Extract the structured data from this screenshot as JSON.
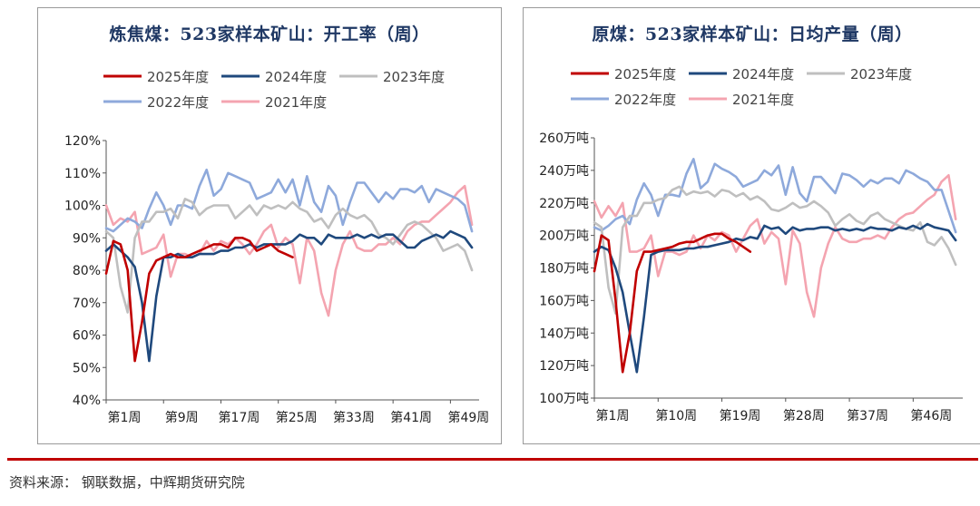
{
  "charts_title_left": "炼焦煤：523家样本矿山：开工率（周）",
  "charts_title_right": "原煤：523家样本矿山：日均产量（周）",
  "source_text": "资料来源： 钢联数据，中辉期货研究院",
  "colors": {
    "2025年度": "#c00000",
    "2024年度": "#1f497d",
    "2023年度": "#bfbfbf",
    "2022年度": "#8ea9db",
    "2021年度": "#f4a4b0",
    "title": "#1f3864",
    "footer_rule": "#c00000"
  },
  "chart_data": [
    {
      "type": "line",
      "title": "炼焦煤：523家样本矿山：开工率（周）",
      "legend": [
        "2025年度",
        "2024年度",
        "2023年度",
        "2022年度",
        "2021年度"
      ],
      "legend_position": "top",
      "grid": false,
      "x_tick_labels": [
        "第1周",
        "第9周",
        "第17周",
        "第25周",
        "第33周",
        "第41周",
        "第49周"
      ],
      "y_tick_labels": [
        "40%",
        "50%",
        "60%",
        "70%",
        "80%",
        "90%",
        "100%",
        "110%",
        "120%"
      ],
      "ylim": [
        40,
        120
      ],
      "xlim": [
        1,
        53
      ],
      "series": [
        {
          "name": "2025年度",
          "x": [
            1,
            2,
            3,
            4,
            5,
            6,
            7,
            8,
            9,
            10,
            11,
            12,
            13,
            14,
            15,
            16,
            17,
            18,
            19,
            20,
            21,
            22,
            23,
            24,
            25,
            26,
            27
          ],
          "values": [
            79,
            89,
            88,
            80,
            52,
            64,
            79,
            83,
            84,
            85,
            84,
            84,
            85,
            86,
            87,
            88,
            88,
            87,
            90,
            90,
            89,
            86,
            87,
            88,
            86,
            85,
            84
          ]
        },
        {
          "name": "2024年度",
          "x": [
            1,
            2,
            3,
            4,
            5,
            6,
            7,
            8,
            9,
            10,
            11,
            12,
            13,
            14,
            15,
            16,
            17,
            18,
            19,
            20,
            21,
            22,
            23,
            24,
            25,
            26,
            27,
            28,
            29,
            30,
            31,
            32,
            33,
            34,
            35,
            36,
            37,
            38,
            39,
            40,
            41,
            42,
            43,
            44,
            45,
            46,
            47,
            48,
            49,
            50,
            51,
            52
          ],
          "values": [
            86,
            88,
            86,
            84,
            81,
            70,
            52,
            72,
            84,
            84,
            85,
            84,
            84,
            85,
            85,
            85,
            86,
            86,
            87,
            87,
            88,
            87,
            88,
            88,
            88,
            88,
            89,
            91,
            90,
            90,
            88,
            91,
            90,
            90,
            90,
            91,
            90,
            91,
            90,
            91,
            91,
            89,
            87,
            87,
            89,
            90,
            91,
            90,
            92,
            91,
            90,
            87
          ]
        },
        {
          "name": "2023年度",
          "x": [
            1,
            2,
            3,
            4,
            5,
            6,
            7,
            8,
            9,
            10,
            11,
            12,
            13,
            14,
            15,
            16,
            17,
            18,
            19,
            20,
            21,
            22,
            23,
            24,
            25,
            26,
            27,
            28,
            29,
            30,
            31,
            32,
            33,
            34,
            35,
            36,
            37,
            38,
            39,
            40,
            41,
            42,
            43,
            44,
            45,
            46,
            47,
            48,
            49,
            50,
            51,
            52
          ],
          "values": [
            92,
            90,
            75,
            67,
            90,
            95,
            95,
            98,
            98,
            99,
            96,
            102,
            101,
            97,
            99,
            100,
            100,
            100,
            96,
            98,
            100,
            97,
            100,
            99,
            100,
            99,
            101,
            99,
            98,
            95,
            96,
            93,
            97,
            99,
            97,
            96,
            97,
            95,
            91,
            90,
            88,
            91,
            94,
            95,
            94,
            92,
            90,
            86,
            87,
            88,
            86,
            80
          ]
        },
        {
          "name": "2022年度",
          "x": [
            1,
            2,
            3,
            4,
            5,
            6,
            7,
            8,
            9,
            10,
            11,
            12,
            13,
            14,
            15,
            16,
            17,
            18,
            19,
            20,
            21,
            22,
            23,
            24,
            25,
            26,
            27,
            28,
            29,
            30,
            31,
            32,
            33,
            34,
            35,
            36,
            37,
            38,
            39,
            40,
            41,
            42,
            43,
            44,
            45,
            46,
            47,
            48,
            49,
            50,
            51,
            52
          ],
          "values": [
            93,
            92,
            94,
            96,
            95,
            93,
            99,
            104,
            100,
            94,
            100,
            100,
            99,
            106,
            111,
            103,
            105,
            110,
            109,
            108,
            107,
            102,
            103,
            104,
            108,
            104,
            108,
            100,
            109,
            101,
            98,
            106,
            103,
            94,
            101,
            107,
            107,
            104,
            101,
            104,
            102,
            105,
            105,
            104,
            106,
            101,
            105,
            104,
            103,
            102,
            100,
            92
          ]
        },
        {
          "name": "2021年度",
          "x": [
            1,
            2,
            3,
            4,
            5,
            6,
            7,
            8,
            9,
            10,
            11,
            12,
            13,
            14,
            15,
            16,
            17,
            18,
            19,
            20,
            21,
            22,
            23,
            24,
            25,
            26,
            27,
            28,
            29,
            30,
            31,
            32,
            33,
            34,
            35,
            36,
            37,
            38,
            39,
            40,
            41,
            42,
            43,
            44,
            45,
            46,
            47,
            48,
            49,
            50,
            51,
            52
          ],
          "values": [
            100,
            94,
            96,
            95,
            98,
            85,
            86,
            87,
            91,
            78,
            85,
            85,
            84,
            85,
            89,
            86,
            89,
            88,
            90,
            88,
            85,
            88,
            92,
            94,
            87,
            90,
            88,
            76,
            90,
            86,
            73,
            66,
            80,
            88,
            92,
            87,
            86,
            86,
            88,
            88,
            90,
            88,
            92,
            94,
            95,
            95,
            97,
            99,
            101,
            104,
            106,
            94
          ]
        }
      ]
    },
    {
      "type": "line",
      "title": "原煤：523家样本矿山：日均产量（周）",
      "legend": [
        "2025年度",
        "2024年度",
        "2023年度",
        "2022年度",
        "2021年度"
      ],
      "legend_position": "top",
      "grid": false,
      "x_tick_labels": [
        "第1周",
        "第10周",
        "第19周",
        "第28周",
        "第37周",
        "第46周"
      ],
      "y_tick_labels": [
        "100万吨",
        "120万吨",
        "140万吨",
        "160万吨",
        "180万吨",
        "200万吨",
        "220万吨",
        "240万吨",
        "260万吨"
      ],
      "ylim": [
        100,
        260
      ],
      "xlim": [
        1,
        53
      ],
      "series": [
        {
          "name": "2025年度",
          "x": [
            1,
            2,
            3,
            4,
            5,
            6,
            7,
            8,
            9,
            10,
            11,
            12,
            13,
            14,
            15,
            16,
            17,
            18,
            19,
            20,
            21,
            22,
            23
          ],
          "values": [
            178,
            200,
            197,
            160,
            116,
            140,
            178,
            190,
            190,
            191,
            192,
            193,
            195,
            196,
            196,
            198,
            200,
            201,
            201,
            198,
            196,
            193,
            190
          ]
        },
        {
          "name": "2024年度",
          "x": [
            1,
            2,
            3,
            4,
            5,
            6,
            7,
            8,
            9,
            10,
            11,
            12,
            13,
            14,
            15,
            16,
            17,
            18,
            19,
            20,
            21,
            22,
            23,
            24,
            25,
            26,
            27,
            28,
            29,
            30,
            31,
            32,
            33,
            34,
            35,
            36,
            37,
            38,
            39,
            40,
            41,
            42,
            43,
            44,
            45,
            46,
            47,
            48,
            49,
            50,
            51,
            52
          ],
          "values": [
            190,
            193,
            191,
            180,
            165,
            140,
            116,
            150,
            188,
            190,
            191,
            191,
            191,
            192,
            192,
            193,
            193,
            194,
            195,
            196,
            198,
            197,
            199,
            198,
            206,
            204,
            205,
            201,
            205,
            203,
            204,
            204,
            205,
            205,
            203,
            204,
            203,
            204,
            203,
            205,
            204,
            204,
            203,
            205,
            204,
            206,
            204,
            207,
            205,
            204,
            203,
            197
          ]
        },
        {
          "name": "2023年度",
          "x": [
            1,
            2,
            3,
            4,
            5,
            6,
            7,
            8,
            9,
            10,
            11,
            12,
            13,
            14,
            15,
            16,
            17,
            18,
            19,
            20,
            21,
            22,
            23,
            24,
            25,
            26,
            27,
            28,
            29,
            30,
            31,
            32,
            33,
            34,
            35,
            36,
            37,
            38,
            39,
            40,
            41,
            42,
            43,
            44,
            45,
            46,
            47,
            48,
            49,
            50,
            51,
            52
          ],
          "values": [
            208,
            205,
            168,
            152,
            205,
            212,
            212,
            220,
            220,
            222,
            223,
            228,
            230,
            225,
            227,
            226,
            227,
            224,
            228,
            227,
            224,
            226,
            222,
            224,
            221,
            216,
            215,
            217,
            220,
            217,
            218,
            221,
            218,
            214,
            206,
            210,
            213,
            209,
            207,
            212,
            214,
            210,
            208,
            206,
            204,
            203,
            208,
            196,
            194,
            199,
            192,
            182
          ]
        },
        {
          "name": "2022年度",
          "x": [
            1,
            2,
            3,
            4,
            5,
            6,
            7,
            8,
            9,
            10,
            11,
            12,
            13,
            14,
            15,
            16,
            17,
            18,
            19,
            20,
            21,
            22,
            23,
            24,
            25,
            26,
            27,
            28,
            29,
            30,
            31,
            32,
            33,
            34,
            35,
            36,
            37,
            38,
            39,
            40,
            41,
            42,
            43,
            44,
            45,
            46,
            47,
            48,
            49,
            50,
            51,
            52
          ],
          "values": [
            205,
            203,
            206,
            210,
            212,
            207,
            222,
            232,
            225,
            212,
            225,
            225,
            224,
            238,
            247,
            229,
            233,
            244,
            241,
            239,
            236,
            230,
            232,
            234,
            240,
            237,
            243,
            225,
            242,
            226,
            221,
            236,
            236,
            231,
            226,
            238,
            237,
            234,
            230,
            234,
            232,
            235,
            235,
            232,
            240,
            238,
            235,
            233,
            228,
            228,
            215,
            202
          ]
        },
        {
          "name": "2021年度",
          "x": [
            1,
            2,
            3,
            4,
            5,
            6,
            7,
            8,
            9,
            10,
            11,
            12,
            13,
            14,
            15,
            16,
            17,
            18,
            19,
            20,
            21,
            22,
            23,
            24,
            25,
            26,
            27,
            28,
            29,
            30,
            31,
            32,
            33,
            34,
            35,
            36,
            37,
            38,
            39,
            40,
            41,
            42,
            43,
            44,
            45,
            46,
            47,
            48,
            49,
            50,
            51,
            52
          ],
          "values": [
            221,
            211,
            218,
            212,
            220,
            190,
            190,
            192,
            200,
            175,
            190,
            190,
            188,
            190,
            200,
            192,
            200,
            197,
            202,
            200,
            190,
            198,
            206,
            210,
            195,
            202,
            198,
            170,
            203,
            195,
            165,
            150,
            180,
            195,
            205,
            198,
            196,
            196,
            198,
            198,
            200,
            198,
            205,
            210,
            213,
            214,
            218,
            222,
            225,
            233,
            237,
            210
          ]
        }
      ]
    }
  ]
}
